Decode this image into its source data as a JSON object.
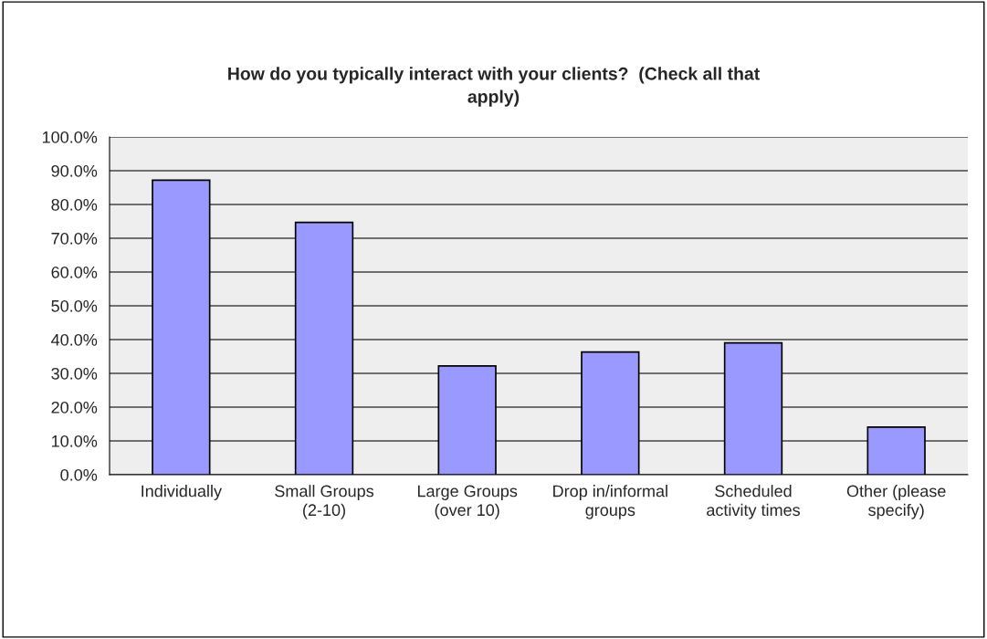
{
  "chart_data": {
    "type": "bar",
    "title": "How do you typically interact with your clients?  (Check all that apply)",
    "categories": [
      "Individually",
      "Small Groups (2-10)",
      "Large Groups (over 10)",
      "Drop in/informal groups",
      "Scheduled activity times",
      "Other (please specify)"
    ],
    "values": [
      87.2,
      74.7,
      32.2,
      36.3,
      39.0,
      14.1
    ],
    "color": "#9999ff",
    "ylim": [
      0,
      100
    ],
    "yticks": [
      {
        "value": 0,
        "label": "0.0%"
      },
      {
        "value": 10,
        "label": "10.0%"
      },
      {
        "value": 20,
        "label": "20.0%"
      },
      {
        "value": 30,
        "label": "30.0%"
      },
      {
        "value": 40,
        "label": "40.0%"
      },
      {
        "value": 50,
        "label": "50.0%"
      },
      {
        "value": 60,
        "label": "60.0%"
      },
      {
        "value": 70,
        "label": "70.0%"
      },
      {
        "value": 80,
        "label": "80.0%"
      },
      {
        "value": 90,
        "label": "90.0%"
      },
      {
        "value": 100,
        "label": "100.0%"
      }
    ],
    "grid": "y"
  }
}
